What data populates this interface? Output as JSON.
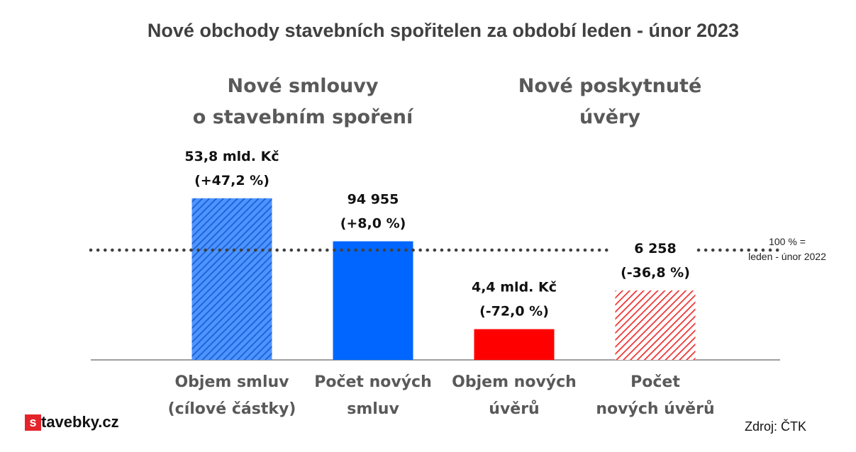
{
  "title": "Nové obchody stavebních spořitelen za období leden - únor 2023",
  "group_titles": [
    {
      "line1": "Nové smlouvy",
      "line2": "o stavebním spoření"
    },
    {
      "line1": "Nové poskytnuté",
      "line2": "úvěry"
    }
  ],
  "reference": {
    "line1": "100 % =",
    "line2": "leden - únor 2022"
  },
  "source": "Zdroj: ČTK",
  "logo": {
    "letter": "s",
    "rest": "tavebky.cz"
  },
  "colors": {
    "blue": "#0066ff",
    "red": "#ff0000",
    "reference_line": "#404040",
    "axis": "#7f7f7f"
  },
  "chart_data": {
    "type": "bar",
    "title": "Nové obchody stavebních spořitelen za období leden - únor 2023",
    "reference_value": 100,
    "categories": [
      [
        "Objem smluv",
        "(cílové částky)"
      ],
      [
        "Počet  nových",
        "smluv"
      ],
      [
        "Objem nových",
        "úvěrů"
      ],
      [
        "Počet",
        "nových úvěrů"
      ]
    ],
    "values": [
      147.2,
      108.0,
      28.0,
      63.2
    ],
    "value_labels": [
      [
        "53,8 mld. Kč",
        "(+47,2 %)"
      ],
      [
        "94 955",
        "(+8,0 %)"
      ],
      [
        "4,4 mld. Kč",
        "(-72,0 %)"
      ],
      [
        "6 258",
        "(-36,8 %)"
      ]
    ],
    "styles": [
      {
        "color": "#0066ff",
        "pattern": "hatched"
      },
      {
        "color": "#0066ff",
        "pattern": "solid"
      },
      {
        "color": "#ff0000",
        "pattern": "solid"
      },
      {
        "color": "#ff0000",
        "pattern": "hatched"
      }
    ]
  }
}
